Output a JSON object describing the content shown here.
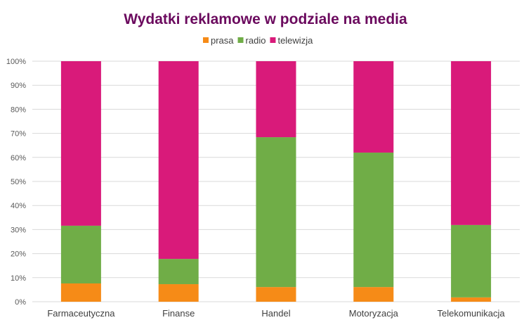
{
  "chart_data": {
    "type": "bar",
    "stacked": true,
    "percent_stacked": true,
    "title": "Wydatki reklamowe w podziale na media",
    "categories": [
      "Farmaceutyczna",
      "Finanse",
      "Handel",
      "Motoryzacja",
      "Telekomunikacja"
    ],
    "series": [
      {
        "name": "prasa",
        "color": "#f68b17",
        "values": [
          7.6,
          7.3,
          6.1,
          6.1,
          1.8
        ]
      },
      {
        "name": "radio",
        "color": "#70ad47",
        "values": [
          24.0,
          10.5,
          62.3,
          55.9,
          30.1
        ]
      },
      {
        "name": "telewizja",
        "color": "#d91a7a",
        "values": [
          68.4,
          82.2,
          31.6,
          38.0,
          68.1
        ]
      }
    ],
    "yticks": [
      "0%",
      "10%",
      "20%",
      "30%",
      "40%",
      "50%",
      "60%",
      "70%",
      "80%",
      "90%",
      "100%"
    ],
    "ylim": [
      0,
      100
    ],
    "grid": true,
    "legend_position": "top"
  }
}
